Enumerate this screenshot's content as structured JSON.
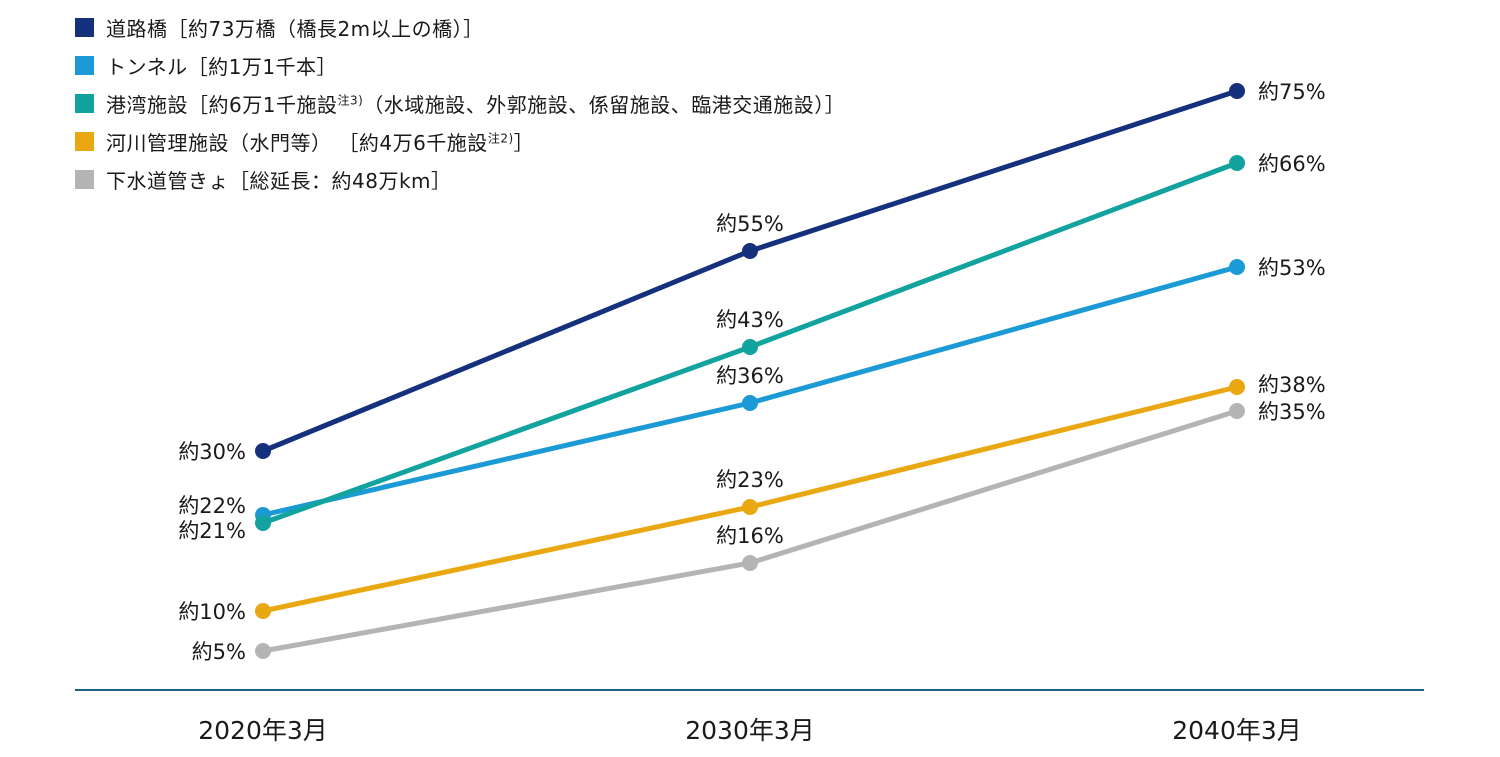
{
  "chart_data": {
    "type": "line",
    "title": "",
    "xlabel": "",
    "ylabel": "",
    "x_labels": [
      "2020年3月",
      "2030年3月",
      "2040年3月"
    ],
    "ylim": [
      0,
      86
    ],
    "grid": false,
    "legend_position": "top-left",
    "axis_color": "#1E607F",
    "text_color": "#1A1A1A",
    "series": [
      {
        "id": "road-bridges",
        "name": "道路橋",
        "label_pre": "道路橋［約73万橋（橋長2m以上の橋）］",
        "label_sup": "",
        "label_post": "",
        "color": "#15317E",
        "values": [
          30,
          55,
          75
        ],
        "point_labels": [
          "約30%",
          "約55%",
          "約75%"
        ]
      },
      {
        "id": "tunnels",
        "name": "トンネル",
        "label_pre": "トンネル［約1万1千本］",
        "label_sup": "",
        "label_post": "",
        "color": "#1C9AD6",
        "values": [
          22,
          36,
          53
        ],
        "point_labels": [
          "約22%",
          "約36%",
          "約53%"
        ]
      },
      {
        "id": "port-facilities",
        "name": "港湾施設",
        "label_pre": "港湾施設［約6万1千施設",
        "label_sup": "注3)",
        "label_post": "（水域施設、外郭施設、係留施設、臨港交通施設）］",
        "color": "#12A39E",
        "values": [
          21,
          43,
          66
        ],
        "point_labels": [
          "約21%",
          "約43%",
          "約66%"
        ]
      },
      {
        "id": "river-management-facilities",
        "name": "河川管理施設（水門等）",
        "label_pre": "河川管理施設（水門等） ［約4万6千施設",
        "label_sup": "注2)",
        "label_post": "］",
        "color": "#E9A712",
        "values": [
          10,
          23,
          38
        ],
        "point_labels": [
          "約10%",
          "約23%",
          "約38%"
        ]
      },
      {
        "id": "sewer-pipes",
        "name": "下水道管きょ",
        "label_pre": "下水道管きょ［総延長：約48万km］",
        "label_sup": "",
        "label_post": "",
        "color": "#B4B4B4",
        "values": [
          5,
          16,
          35
        ],
        "point_labels": [
          "約5%",
          "約16%",
          "約35%"
        ]
      }
    ]
  }
}
